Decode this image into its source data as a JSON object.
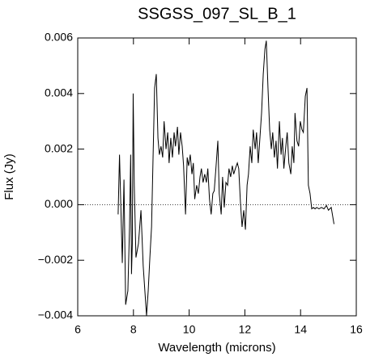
{
  "chart_data": {
    "type": "line",
    "title": "SSGSS_097_SL_B_1",
    "x_label": "Wavelength (microns)",
    "y_label": "Flux (Jy)",
    "xlim": [
      6,
      16
    ],
    "xticks": [
      6,
      8,
      10,
      12,
      14,
      16
    ],
    "ylim": [
      -0.004,
      0.006
    ],
    "yticks": [
      {
        "value": -0.004,
        "label": "−0.004"
      },
      {
        "value": -0.002,
        "label": "−0.002"
      },
      {
        "value": 0,
        "label": "0.000"
      },
      {
        "value": 0.002,
        "label": "0.002"
      },
      {
        "value": 0.004,
        "label": "0.004"
      },
      {
        "value": 0.006,
        "label": "0.006"
      }
    ],
    "zero_line": true,
    "color": "#000000",
    "x": [
      7.45,
      7.5,
      7.6,
      7.66,
      7.72,
      7.8,
      7.86,
      7.9,
      7.93,
      7.96,
      7.99,
      8.03,
      8.09,
      8.18,
      8.27,
      8.35,
      8.41,
      8.47,
      8.53,
      8.59,
      8.65,
      8.7,
      8.76,
      8.82,
      8.88,
      8.93,
      8.99,
      9.05,
      9.1,
      9.17,
      9.23,
      9.28,
      9.34,
      9.4,
      9.46,
      9.51,
      9.58,
      9.63,
      9.69,
      9.75,
      9.8,
      9.87,
      9.93,
      9.98,
      10.04,
      10.1,
      10.15,
      10.2,
      10.27,
      10.33,
      10.39,
      10.44,
      10.5,
      10.56,
      10.62,
      10.67,
      10.73,
      10.79,
      10.85,
      10.9,
      10.96,
      11.03,
      11.08,
      11.15,
      11.2,
      11.26,
      11.32,
      11.38,
      11.43,
      11.49,
      11.55,
      11.6,
      11.66,
      11.73,
      11.78,
      11.84,
      11.9,
      11.96,
      12.02,
      12.08,
      12.13,
      12.19,
      12.25,
      12.3,
      12.37,
      12.42,
      12.48,
      12.54,
      12.6,
      12.66,
      12.72,
      12.77,
      12.83,
      12.89,
      12.95,
      13.0,
      13.06,
      13.12,
      13.17,
      13.24,
      13.3,
      13.35,
      13.4,
      13.47,
      13.52,
      13.58,
      13.65,
      13.7,
      13.76,
      13.8,
      13.87,
      13.93,
      13.99,
      14.05,
      14.1,
      14.17,
      14.23,
      14.28,
      14.34,
      14.4,
      14.46,
      14.52,
      14.58,
      14.66,
      14.75,
      14.84,
      14.93,
      15.0,
      15.1,
      15.2
    ],
    "values": [
      -0.00035,
      0.0018,
      -0.0021,
      0.0009,
      -0.0036,
      -0.0031,
      -0.0008,
      0.0018,
      -0.0025,
      -0.0014,
      0.004,
      0.0007,
      -0.0019,
      -0.0014,
      -0.0002,
      -0.0022,
      -0.0031,
      -0.004,
      -0.0031,
      -0.0019,
      -0.0008,
      0.0015,
      0.0042,
      0.0047,
      0.0024,
      0.0018,
      0.0021,
      0.0017,
      0.003,
      0.002,
      0.0026,
      0.0015,
      0.0024,
      0.0017,
      0.0026,
      0.0021,
      0.0028,
      0.0018,
      0.0026,
      0.0021,
      0.0014,
      -0.00035,
      0.0017,
      0.0014,
      0.0018,
      0.0011,
      0.0015,
      0.0002,
      0.0007,
      0.0004,
      0.001,
      0.0013,
      0.0008,
      0.0011,
      0.0008,
      0.0013,
      0.0002,
      -0.00035,
      0.0004,
      0.0005,
      0.0013,
      0.0023,
      0.0004,
      -0.00035,
      0.001,
      -0.0001,
      0.0008,
      0.0007,
      0.0013,
      0.001,
      0.0014,
      0.0011,
      0.0013,
      0.0015,
      0.0013,
      0.0001,
      -0.0008,
      -0.0002,
      -0.0009,
      0.0007,
      0.0011,
      0.0021,
      0.0015,
      0.0027,
      0.002,
      0.0026,
      0.0015,
      0.0024,
      0.0033,
      0.0047,
      0.0056,
      0.0059,
      0.0042,
      0.0027,
      0.002,
      0.0026,
      0.0017,
      0.0023,
      0.0013,
      0.003,
      0.0018,
      0.0024,
      0.0013,
      0.0021,
      0.0026,
      0.0015,
      0.0011,
      0.0021,
      0.0015,
      0.0033,
      0.0023,
      0.0021,
      0.003,
      0.0027,
      0.0026,
      0.0039,
      0.0042,
      0.0007,
      0.0004,
      -0.00015,
      -0.0001,
      -0.00015,
      -0.0001,
      -0.00015,
      -0.0001,
      -0.00015,
      -3e-05,
      -0.0002,
      -0.0001,
      -0.0007
    ]
  }
}
